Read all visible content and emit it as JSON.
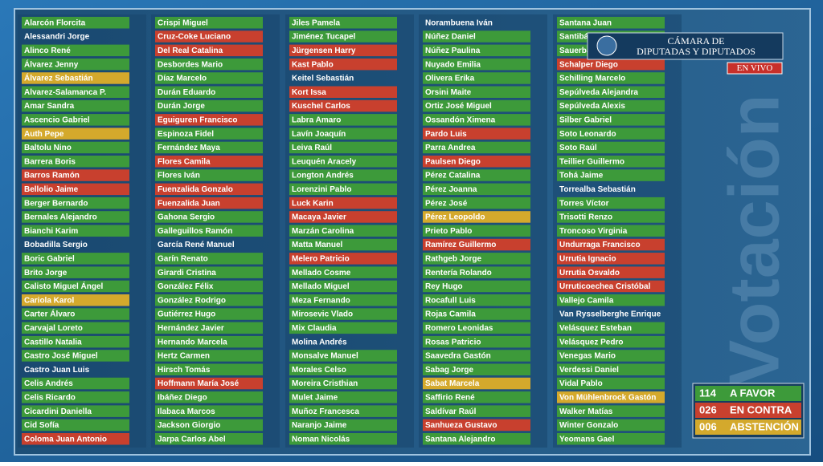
{
  "board": {
    "columns": [
      [
        {
          "name": "Alarcón Florcita",
          "color": "#3d9a3a"
        },
        {
          "name": "Alessandri Jorge",
          "color": null
        },
        {
          "name": "Alinco René",
          "color": "#3d9a3a"
        },
        {
          "name": "Álvarez Jenny",
          "color": "#3d9a3a"
        },
        {
          "name": "Álvarez Sebastián",
          "color": "#d4a92c"
        },
        {
          "name": "Alvarez-Salamanca P.",
          "color": "#3d9a3a"
        },
        {
          "name": "Amar Sandra",
          "color": "#3d9a3a"
        },
        {
          "name": "Ascencio Gabriel",
          "color": "#3d9a3a"
        },
        {
          "name": "Auth Pepe",
          "color": "#d4a92c"
        },
        {
          "name": "Baltolu Nino",
          "color": "#3d9a3a"
        },
        {
          "name": "Barrera Boris",
          "color": "#3d9a3a"
        },
        {
          "name": "Barros Ramón",
          "color": "#c8402e"
        },
        {
          "name": "Bellolio Jaime",
          "color": "#c8402e"
        },
        {
          "name": "Berger Bernardo",
          "color": "#3d9a3a"
        },
        {
          "name": "Bernales Alejandro",
          "color": "#3d9a3a"
        },
        {
          "name": "Bianchi Karim",
          "color": "#3d9a3a"
        },
        {
          "name": "Bobadilla Sergio",
          "color": null
        },
        {
          "name": "Boric Gabriel",
          "color": "#3d9a3a"
        },
        {
          "name": "Brito Jorge",
          "color": "#3d9a3a"
        },
        {
          "name": "Calisto Miguel Ángel",
          "color": "#3d9a3a"
        },
        {
          "name": "Cariola Karol",
          "color": "#d4a92c"
        },
        {
          "name": "Carter Álvaro",
          "color": "#3d9a3a"
        },
        {
          "name": "Carvajal Loreto",
          "color": "#3d9a3a"
        },
        {
          "name": "Castillo Natalia",
          "color": "#3d9a3a"
        },
        {
          "name": "Castro José Miguel",
          "color": "#3d9a3a"
        },
        {
          "name": "Castro Juan Luis",
          "color": null
        },
        {
          "name": "Celis Andrés",
          "color": "#3d9a3a"
        },
        {
          "name": "Celis Ricardo",
          "color": "#3d9a3a"
        },
        {
          "name": "Cicardini Daniella",
          "color": "#3d9a3a"
        },
        {
          "name": "Cid Sofía",
          "color": "#3d9a3a"
        },
        {
          "name": "Coloma Juan Antonio",
          "color": "#c8402e"
        }
      ],
      [
        {
          "name": "Crispi Miguel",
          "color": "#3d9a3a"
        },
        {
          "name": "Cruz-Coke Luciano",
          "color": "#c8402e"
        },
        {
          "name": "Del Real Catalina",
          "color": "#c8402e"
        },
        {
          "name": "Desbordes Mario",
          "color": "#3d9a3a"
        },
        {
          "name": "Díaz Marcelo",
          "color": "#3d9a3a"
        },
        {
          "name": "Durán Eduardo",
          "color": "#3d9a3a"
        },
        {
          "name": "Durán Jorge",
          "color": "#3d9a3a"
        },
        {
          "name": "Eguiguren Francisco",
          "color": "#c8402e"
        },
        {
          "name": "Espinoza Fidel",
          "color": "#3d9a3a"
        },
        {
          "name": "Fernández Maya",
          "color": "#3d9a3a"
        },
        {
          "name": "Flores Camila",
          "color": "#c8402e"
        },
        {
          "name": "Flores Iván",
          "color": "#3d9a3a"
        },
        {
          "name": "Fuenzalida Gonzalo",
          "color": "#c8402e"
        },
        {
          "name": "Fuenzalida Juan",
          "color": "#c8402e"
        },
        {
          "name": "Gahona Sergio",
          "color": "#3d9a3a"
        },
        {
          "name": "Galleguillos Ramón",
          "color": "#3d9a3a"
        },
        {
          "name": "García René Manuel",
          "color": null
        },
        {
          "name": "Garín Renato",
          "color": "#3d9a3a"
        },
        {
          "name": "Girardi Cristina",
          "color": "#3d9a3a"
        },
        {
          "name": "González Félix",
          "color": "#3d9a3a"
        },
        {
          "name": "González Rodrigo",
          "color": "#3d9a3a"
        },
        {
          "name": "Gutiérrez Hugo",
          "color": "#3d9a3a"
        },
        {
          "name": "Hernández Javier",
          "color": "#3d9a3a"
        },
        {
          "name": "Hernando Marcela",
          "color": "#3d9a3a"
        },
        {
          "name": "Hertz Carmen",
          "color": "#3d9a3a"
        },
        {
          "name": "Hirsch Tomás",
          "color": "#3d9a3a"
        },
        {
          "name": "Hoffmann María José",
          "color": "#c8402e"
        },
        {
          "name": "Ibáñez Diego",
          "color": "#3d9a3a"
        },
        {
          "name": "Ilabaca Marcos",
          "color": "#3d9a3a"
        },
        {
          "name": "Jackson Giorgio",
          "color": "#3d9a3a"
        },
        {
          "name": "Jarpa Carlos Abel",
          "color": "#3d9a3a"
        }
      ],
      [
        {
          "name": "Jiles Pamela",
          "color": "#3d9a3a"
        },
        {
          "name": "Jiménez Tucapel",
          "color": "#3d9a3a"
        },
        {
          "name": "Jürgensen Harry",
          "color": "#c8402e"
        },
        {
          "name": "Kast Pablo",
          "color": "#c8402e"
        },
        {
          "name": "Keitel Sebastián",
          "color": null
        },
        {
          "name": "Kort Issa",
          "color": "#c8402e"
        },
        {
          "name": "Kuschel Carlos",
          "color": "#c8402e"
        },
        {
          "name": "Labra Amaro",
          "color": "#3d9a3a"
        },
        {
          "name": "Lavín Joaquín",
          "color": "#3d9a3a"
        },
        {
          "name": "Leiva Raúl",
          "color": "#3d9a3a"
        },
        {
          "name": "Leuquén Aracely",
          "color": "#3d9a3a"
        },
        {
          "name": "Longton Andrés",
          "color": "#3d9a3a"
        },
        {
          "name": "Lorenzini Pablo",
          "color": "#3d9a3a"
        },
        {
          "name": "Luck Karin",
          "color": "#c8402e"
        },
        {
          "name": "Macaya Javier",
          "color": "#c8402e"
        },
        {
          "name": "Marzán Carolina",
          "color": "#3d9a3a"
        },
        {
          "name": "Matta Manuel",
          "color": "#3d9a3a"
        },
        {
          "name": "Melero Patricio",
          "color": "#c8402e"
        },
        {
          "name": "Mellado Cosme",
          "color": "#3d9a3a"
        },
        {
          "name": "Mellado Miguel",
          "color": "#3d9a3a"
        },
        {
          "name": "Meza Fernando",
          "color": "#3d9a3a"
        },
        {
          "name": "Mirosevic Vlado",
          "color": "#3d9a3a"
        },
        {
          "name": "Mix Claudia",
          "color": "#3d9a3a"
        },
        {
          "name": "Molina Andrés",
          "color": null
        },
        {
          "name": "Monsalve Manuel",
          "color": "#3d9a3a"
        },
        {
          "name": "Morales Celso",
          "color": "#3d9a3a"
        },
        {
          "name": "Moreira Cristhian",
          "color": "#3d9a3a"
        },
        {
          "name": "Mulet Jaime",
          "color": "#3d9a3a"
        },
        {
          "name": "Muñoz Francesca",
          "color": "#3d9a3a"
        },
        {
          "name": "Naranjo Jaime",
          "color": "#3d9a3a"
        },
        {
          "name": "Noman Nicolás",
          "color": "#3d9a3a"
        }
      ],
      [
        {
          "name": "Norambuena Iván",
          "color": null
        },
        {
          "name": "Núñez Daniel",
          "color": "#3d9a3a"
        },
        {
          "name": "Núñez Paulina",
          "color": "#3d9a3a"
        },
        {
          "name": "Nuyado Emilia",
          "color": "#3d9a3a"
        },
        {
          "name": "Olivera Erika",
          "color": "#3d9a3a"
        },
        {
          "name": "Orsini Maite",
          "color": "#3d9a3a"
        },
        {
          "name": "Ortiz José Miguel",
          "color": "#3d9a3a"
        },
        {
          "name": "Ossandón Ximena",
          "color": "#3d9a3a"
        },
        {
          "name": "Pardo Luis",
          "color": "#c8402e"
        },
        {
          "name": "Parra Andrea",
          "color": "#3d9a3a"
        },
        {
          "name": "Paulsen Diego",
          "color": "#c8402e"
        },
        {
          "name": "Pérez Catalina",
          "color": "#3d9a3a"
        },
        {
          "name": "Pérez Joanna",
          "color": "#3d9a3a"
        },
        {
          "name": "Pérez José",
          "color": "#3d9a3a"
        },
        {
          "name": "Pérez Leopoldo",
          "color": "#d4a92c"
        },
        {
          "name": "Prieto Pablo",
          "color": "#3d9a3a"
        },
        {
          "name": "Ramírez Guillermo",
          "color": "#c8402e"
        },
        {
          "name": "Rathgeb Jorge",
          "color": "#3d9a3a"
        },
        {
          "name": "Rentería Rolando",
          "color": "#3d9a3a"
        },
        {
          "name": "Rey Hugo",
          "color": "#3d9a3a"
        },
        {
          "name": "Rocafull Luis",
          "color": "#3d9a3a"
        },
        {
          "name": "Rojas Camila",
          "color": "#3d9a3a"
        },
        {
          "name": "Romero Leonidas",
          "color": "#3d9a3a"
        },
        {
          "name": "Rosas Patricio",
          "color": "#3d9a3a"
        },
        {
          "name": "Saavedra Gastón",
          "color": "#3d9a3a"
        },
        {
          "name": "Sabag Jorge",
          "color": "#3d9a3a"
        },
        {
          "name": "Sabat Marcela",
          "color": "#d4a92c"
        },
        {
          "name": "Saffirio René",
          "color": "#3d9a3a"
        },
        {
          "name": "Saldívar Raúl",
          "color": "#3d9a3a"
        },
        {
          "name": "Sanhueza Gustavo",
          "color": "#c8402e"
        },
        {
          "name": "Santana Alejandro",
          "color": "#3d9a3a"
        }
      ],
      [
        {
          "name": "Santana Juan",
          "color": "#3d9a3a"
        },
        {
          "name": "Santibáñez Marisela",
          "color": "#3d9a3a"
        },
        {
          "name": "Sauerbaum Frank",
          "color": "#3d9a3a"
        },
        {
          "name": "Schalper Diego",
          "color": "#c8402e"
        },
        {
          "name": "Schilling Marcelo",
          "color": "#3d9a3a"
        },
        {
          "name": "Sepúlveda Alejandra",
          "color": "#3d9a3a"
        },
        {
          "name": "Sepúlveda Alexis",
          "color": "#3d9a3a"
        },
        {
          "name": "Silber Gabriel",
          "color": "#3d9a3a"
        },
        {
          "name": "Soto Leonardo",
          "color": "#3d9a3a"
        },
        {
          "name": "Soto Raúl",
          "color": "#3d9a3a"
        },
        {
          "name": "Teillier Guillermo",
          "color": "#3d9a3a"
        },
        {
          "name": "Tohá Jaime",
          "color": "#3d9a3a"
        },
        {
          "name": "Torrealba Sebastián",
          "color": null
        },
        {
          "name": "Torres Víctor",
          "color": "#3d9a3a"
        },
        {
          "name": "Trisotti Renzo",
          "color": "#3d9a3a"
        },
        {
          "name": "Troncoso Virginia",
          "color": "#3d9a3a"
        },
        {
          "name": "Undurraga Francisco",
          "color": "#c8402e"
        },
        {
          "name": "Urrutia Ignacio",
          "color": "#c8402e"
        },
        {
          "name": "Urrutia Osvaldo",
          "color": "#c8402e"
        },
        {
          "name": "Urruticoechea Cristóbal",
          "color": "#c8402e"
        },
        {
          "name": "Vallejo Camila",
          "color": "#3d9a3a"
        },
        {
          "name": "Van Rysselberghe Enrique",
          "color": null
        },
        {
          "name": "Velásquez Esteban",
          "color": "#3d9a3a"
        },
        {
          "name": "Velásquez Pedro",
          "color": "#3d9a3a"
        },
        {
          "name": "Venegas Mario",
          "color": "#3d9a3a"
        },
        {
          "name": "Verdessi Daniel",
          "color": "#3d9a3a"
        },
        {
          "name": "Vidal Pablo",
          "color": "#3d9a3a"
        },
        {
          "name": "Von Mühlenbrock Gastón",
          "color": "#d4a92c"
        },
        {
          "name": "Walker Matías",
          "color": "#3d9a3a"
        },
        {
          "name": "Winter Gonzalo",
          "color": "#3d9a3a"
        },
        {
          "name": "Yeomans Gael",
          "color": "#3d9a3a"
        }
      ]
    ]
  },
  "totals": [
    {
      "count": "114",
      "label": "A FAVOR",
      "color": "#3d9a3a"
    },
    {
      "count": "026",
      "label": "EN CONTRA",
      "color": "#c8402e"
    },
    {
      "count": "006",
      "label": "ABSTENCIÓN",
      "color": "#d4a92c"
    }
  ],
  "logo": {
    "line1": "CÁMARA DE",
    "line2": "DIPUTADAS Y DIPUTADOS",
    "live": "EN VIVO"
  },
  "watermark": "Votación"
}
